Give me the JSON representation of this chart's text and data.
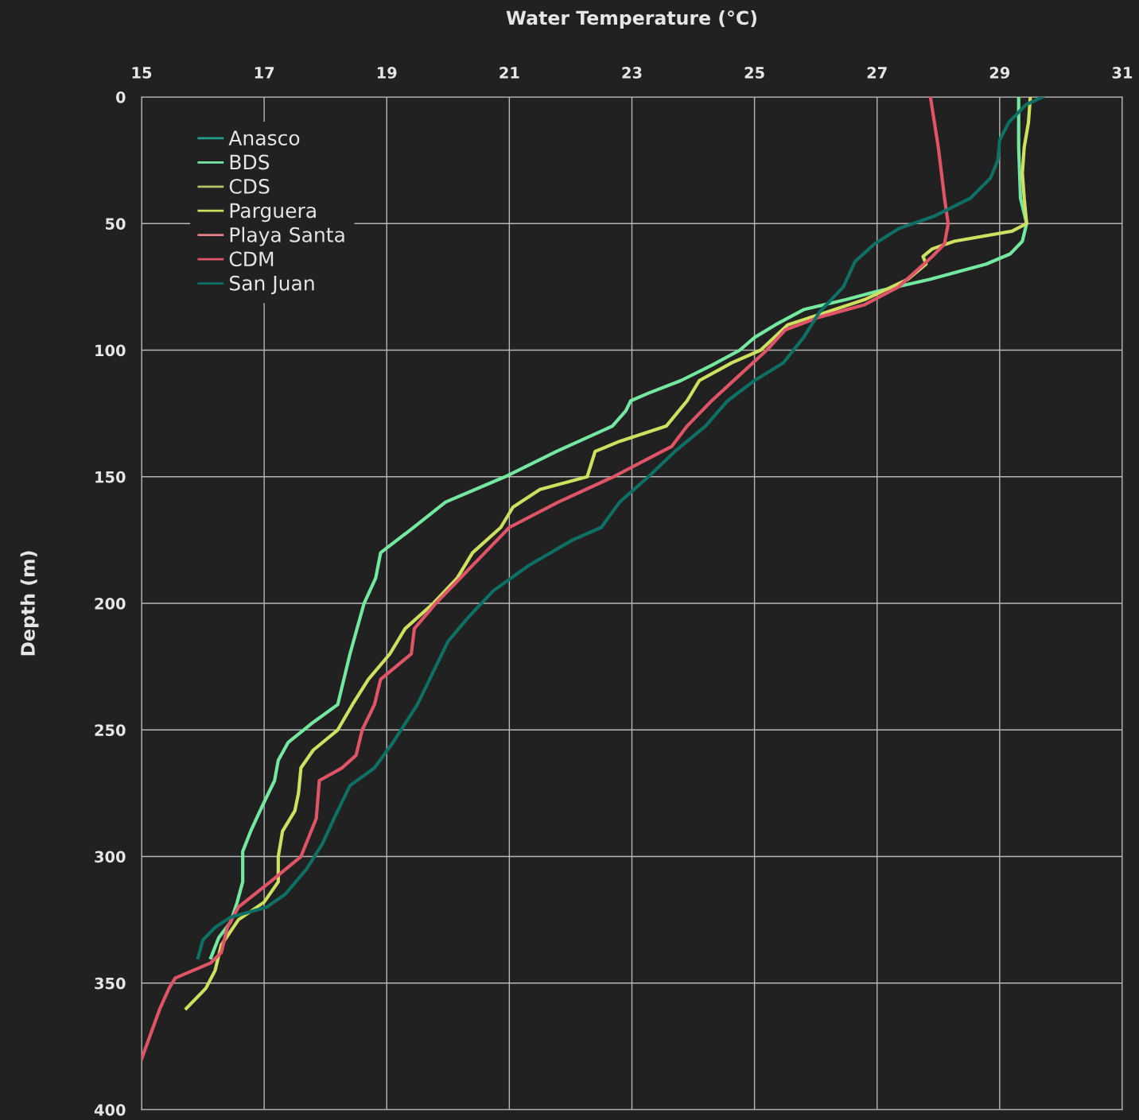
{
  "chart_data": {
    "type": "line",
    "xlabel": "Water Temperature (°C)",
    "ylabel": "Depth (m)",
    "xlim": [
      15,
      31
    ],
    "xticks": [
      15,
      17,
      19,
      21,
      23,
      25,
      27,
      29,
      31
    ],
    "ylim": [
      400,
      0
    ],
    "yticks": [
      0,
      50,
      100,
      150,
      200,
      250,
      300,
      350,
      400
    ],
    "grid": true,
    "legend": "top left",
    "marker": "none",
    "line_style": "solid",
    "series": [
      {
        "name": "Anasco",
        "color": "#22a08a",
        "x": [
          null
        ],
        "values": [
          null
        ]
      },
      {
        "name": "BDS",
        "color": "#74e8a0",
        "x": [
          29.31,
          29.31,
          29.34,
          29.44,
          29.37,
          29.17,
          28.78,
          27.87,
          26.96,
          26.5,
          25.8,
          25.34,
          25.0,
          24.76,
          24.3,
          23.8,
          23.27,
          22.98,
          22.9,
          22.68,
          21.77,
          20.93,
          19.96,
          19.44,
          18.9,
          18.82,
          18.63,
          18.4,
          18.2,
          17.8,
          17.39,
          17.23,
          17.17,
          16.97,
          16.78,
          16.65,
          16.65,
          16.56,
          16.45,
          16.26,
          16.13
        ],
        "values": [
          0,
          20,
          40,
          50,
          57,
          62,
          66,
          72,
          77,
          80,
          84,
          90,
          95,
          100,
          106,
          112,
          117,
          120,
          124,
          130,
          140,
          150,
          160,
          170,
          180,
          190,
          200,
          220,
          240,
          247,
          255,
          262,
          270,
          280,
          290,
          298,
          310,
          318,
          326,
          332,
          340
        ]
      },
      {
        "name": "CDS",
        "color": "#b5c46a",
        "x": [
          null
        ],
        "values": [
          null
        ]
      },
      {
        "name": "Parguera",
        "color": "#cfe060",
        "x": [
          29.5,
          29.47,
          29.4,
          29.37,
          29.4,
          29.44,
          29.2,
          28.26,
          27.9,
          27.75,
          27.8,
          27.5,
          26.8,
          26.05,
          25.54,
          25.1,
          24.63,
          24.1,
          23.9,
          23.56,
          22.8,
          22.4,
          22.27,
          21.5,
          21.06,
          20.86,
          20.4,
          20.15,
          19.76,
          19.3,
          19.05,
          18.7,
          18.44,
          18.2,
          17.8,
          17.6,
          17.56,
          17.5,
          17.3,
          17.23,
          17.23,
          17.0,
          16.58,
          16.3,
          16.2,
          16.05,
          15.73
        ],
        "values": [
          0,
          10,
          20,
          30,
          40,
          50,
          53,
          57,
          60,
          63,
          66,
          72,
          80,
          86,
          90,
          100,
          105,
          112,
          120,
          130,
          136,
          140,
          150,
          155,
          162,
          170,
          180,
          190,
          200,
          210,
          220,
          230,
          240,
          250,
          258,
          265,
          275,
          282,
          290,
          300,
          310,
          318,
          325,
          335,
          345,
          352,
          360
        ]
      },
      {
        "name": "Playa Santa",
        "color": "#e8808a",
        "x": [
          null
        ],
        "values": [
          null
        ]
      },
      {
        "name": "CDM",
        "color": "#e05468",
        "x": [
          27.87,
          28.0,
          28.1,
          28.16,
          28.1,
          27.9,
          27.35,
          26.8,
          26.05,
          25.5,
          25.2,
          24.75,
          24.3,
          23.9,
          23.65,
          23.33,
          22.7,
          21.8,
          21.0,
          20.6,
          20.2,
          19.8,
          19.45,
          19.4,
          18.9,
          18.8,
          18.6,
          18.5,
          18.27,
          17.9,
          17.85,
          17.6,
          17.1,
          16.58,
          16.4,
          16.3,
          16.13,
          15.55,
          15.45,
          15.3,
          15.15,
          15.0
        ],
        "values": [
          0,
          20,
          40,
          50,
          58,
          63,
          75,
          82,
          87,
          92,
          100,
          110,
          120,
          130,
          138,
          142,
          150,
          160,
          170,
          180,
          190,
          200,
          210,
          220,
          230,
          240,
          250,
          260,
          265,
          270,
          285,
          300,
          310,
          320,
          328,
          338,
          342,
          348,
          352,
          360,
          370,
          380
        ]
      },
      {
        "name": "San Juan",
        "color": "#0e7064",
        "x": [
          29.7,
          29.43,
          29.15,
          29.0,
          28.97,
          28.85,
          28.52,
          27.94,
          27.35,
          26.96,
          26.64,
          26.45,
          26.06,
          25.8,
          25.47,
          25.0,
          24.56,
          24.2,
          23.7,
          23.27,
          22.8,
          22.5,
          22.03,
          21.32,
          20.74,
          20.35,
          20.0,
          19.8,
          19.5,
          19.1,
          18.8,
          18.4,
          18.14,
          17.95,
          17.69,
          17.34,
          17.04,
          16.45,
          16.2,
          16.0,
          15.92
        ],
        "values": [
          0,
          3,
          10,
          17,
          25,
          32,
          40,
          47,
          52,
          58,
          65,
          75,
          85,
          95,
          105,
          112,
          120,
          130,
          140,
          150,
          160,
          170,
          175,
          185,
          195,
          205,
          215,
          225,
          240,
          255,
          265,
          272,
          285,
          295,
          305,
          315,
          320,
          324,
          328,
          333,
          340
        ]
      }
    ]
  }
}
